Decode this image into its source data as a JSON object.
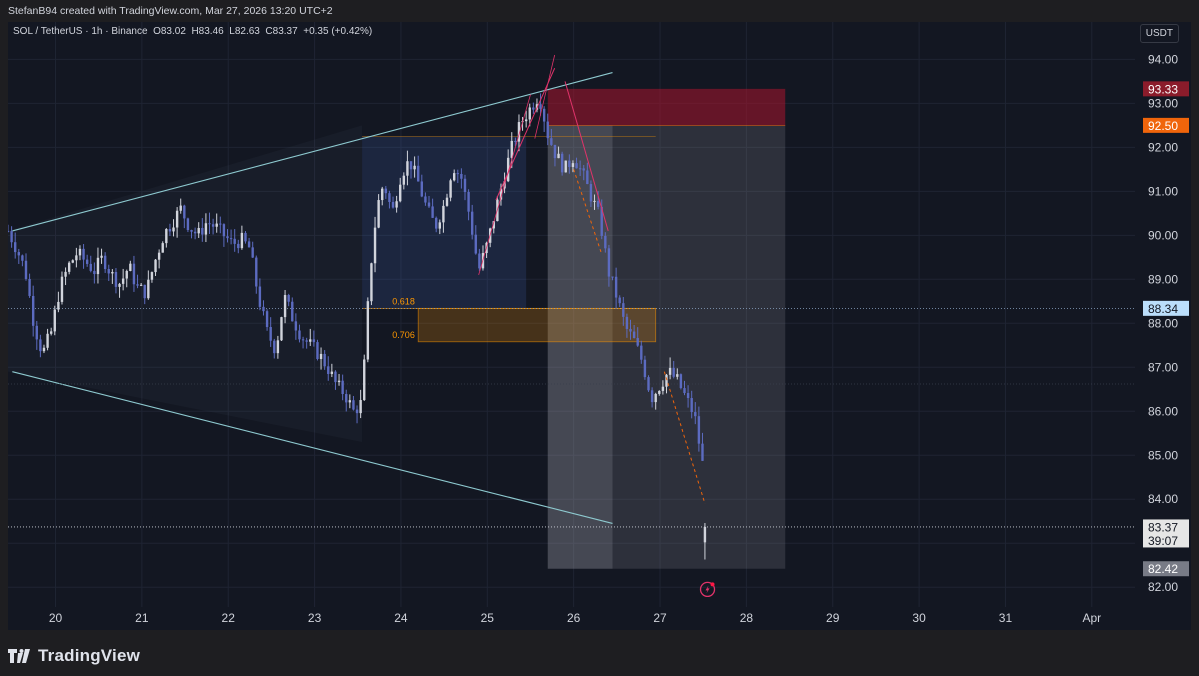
{
  "header": {
    "credit": "StefanB94 created with TradingView.com, Mar 27, 2026 13:20 UTC+2"
  },
  "legend": {
    "symbol": "SOL / TetherUS · 1h · Binance",
    "open": "O83.02",
    "high": "H83.46",
    "low": "L82.63",
    "close": "C83.37",
    "change": "+0.35 (+0.42%)"
  },
  "currency": "USDT",
  "footer": {
    "brand": "TradingView"
  },
  "colors": {
    "background": "#131722",
    "up_candle": "#d1d4dc",
    "down_candle": "#5c6bc0",
    "trendline": "#8ecad0",
    "stop_zone": "#8a1f2e",
    "fib_zone": "#ff9800",
    "red_marker": "#ff1744"
  },
  "chart_data": {
    "type": "candlestick",
    "symbol": "SOL / TetherUS",
    "interval": "1h",
    "exchange": "Binance",
    "ylim": [
      81.55,
      94.85
    ],
    "y_ticks": [
      "82.00",
      "83.00",
      "84.00",
      "85.00",
      "86.00",
      "87.00",
      "88.00",
      "89.00",
      "90.00",
      "91.00",
      "92.00",
      "93.00",
      "94.00"
    ],
    "x_ticks": [
      "20",
      "21",
      "22",
      "23",
      "24",
      "25",
      "26",
      "27",
      "28",
      "29",
      "30",
      "31",
      "Apr"
    ],
    "x_tick_days": [
      20,
      21,
      22,
      23,
      24,
      25,
      26,
      27,
      28,
      29,
      30,
      31,
      32
    ],
    "x_range_days": [
      19.45,
      32.5
    ],
    "price_labels": [
      {
        "value": 93.33,
        "text": "93.33",
        "color": "#8b1c2b"
      },
      {
        "value": 92.5,
        "text": "92.50",
        "color": "#f0650b"
      },
      {
        "value": 88.34,
        "text": "88.34",
        "color": "#bbdefb",
        "text_color": "#131722"
      },
      {
        "value": 83.37,
        "text": "83.37",
        "sub": "39:07",
        "color": "#e6e6e6",
        "text_color": "#131722"
      },
      {
        "value": 82.42,
        "text": "82.42",
        "color": "#787b86",
        "text_color": "#ffffff"
      }
    ],
    "fib_levels": [
      {
        "label": "0.618",
        "value": 88.34
      },
      {
        "label": "0.706",
        "value": 87.58
      }
    ],
    "trend_points": [
      [
        19.45,
        89.9
      ],
      [
        19.6,
        89.0
      ],
      [
        19.7,
        87.9
      ],
      [
        19.8,
        87.3
      ],
      [
        19.9,
        88.1
      ],
      [
        20.0,
        88.9
      ],
      [
        20.1,
        89.5
      ],
      [
        20.2,
        89.6
      ],
      [
        20.3,
        89.4
      ],
      [
        20.4,
        89.2
      ],
      [
        20.5,
        89.5
      ],
      [
        20.6,
        89.0
      ],
      [
        20.7,
        88.9
      ],
      [
        20.8,
        89.2
      ],
      [
        20.9,
        88.8
      ],
      [
        21.0,
        88.6
      ],
      [
        21.1,
        89.3
      ],
      [
        21.2,
        90.2
      ],
      [
        21.3,
        90.4
      ],
      [
        21.4,
        90.6
      ],
      [
        21.5,
        90.2
      ],
      [
        21.6,
        90.1
      ],
      [
        21.7,
        90.3
      ],
      [
        21.8,
        90.2
      ],
      [
        21.9,
        90.0
      ],
      [
        22.0,
        89.8
      ],
      [
        22.1,
        89.9
      ],
      [
        22.2,
        89.8
      ],
      [
        22.3,
        89.1
      ],
      [
        22.4,
        88.0
      ],
      [
        22.5,
        87.6
      ],
      [
        22.6,
        88.5
      ],
      [
        22.7,
        88.2
      ],
      [
        22.8,
        87.8
      ],
      [
        22.9,
        87.4
      ],
      [
        23.0,
        87.5
      ],
      [
        23.1,
        87.1
      ],
      [
        23.2,
        86.9
      ],
      [
        23.3,
        86.6
      ],
      [
        23.4,
        86.3
      ],
      [
        23.5,
        86.8
      ],
      [
        23.6,
        86.6
      ],
      [
        23.7,
        86.1
      ],
      [
        23.8,
        86.3
      ],
      [
        23.9,
        86.1
      ],
      [
        24.0,
        86.5
      ],
      [
        24.1,
        86.9
      ],
      [
        24.2,
        86.4
      ],
      [
        24.3,
        86.6
      ],
      [
        24.4,
        86.0
      ],
      [
        24.5,
        85.8
      ],
      [
        24.6,
        86.1
      ],
      [
        24.7,
        85.9
      ],
      [
        24.8,
        86.2
      ],
      [
        24.9,
        86.0
      ],
      [
        23.55,
        86.2
      ],
      [
        23.65,
        88.5
      ],
      [
        23.75,
        91.0
      ],
      [
        23.85,
        90.2
      ]
    ],
    "series_sequence": [
      [
        19.45,
        90.1
      ],
      [
        19.55,
        89.7
      ],
      [
        19.65,
        89.2
      ],
      [
        19.75,
        88.0
      ],
      [
        19.85,
        87.3
      ],
      [
        19.95,
        87.8
      ],
      [
        20.05,
        88.8
      ],
      [
        20.15,
        89.3
      ],
      [
        20.25,
        89.6
      ],
      [
        20.35,
        89.4
      ],
      [
        20.45,
        89.2
      ],
      [
        20.55,
        89.5
      ],
      [
        20.65,
        89.1
      ],
      [
        20.75,
        88.9
      ],
      [
        20.85,
        89.3
      ],
      [
        20.95,
        88.8
      ],
      [
        21.05,
        88.7
      ],
      [
        21.15,
        89.4
      ],
      [
        21.25,
        90.0
      ],
      [
        21.35,
        90.3
      ],
      [
        21.45,
        90.6
      ],
      [
        21.55,
        90.2
      ],
      [
        21.65,
        90.0
      ],
      [
        21.75,
        90.3
      ],
      [
        21.85,
        90.2
      ],
      [
        21.95,
        90.0
      ],
      [
        22.05,
        89.8
      ],
      [
        22.15,
        89.9
      ],
      [
        22.25,
        89.7
      ],
      [
        22.35,
        88.6
      ],
      [
        22.45,
        87.8
      ],
      [
        22.55,
        87.4
      ],
      [
        22.65,
        88.6
      ],
      [
        22.75,
        88.1
      ],
      [
        22.85,
        87.7
      ],
      [
        22.95,
        87.5
      ],
      [
        23.05,
        87.3
      ],
      [
        23.15,
        87.0
      ],
      [
        23.25,
        86.6
      ],
      [
        23.35,
        86.4
      ],
      [
        23.45,
        86.0
      ],
      [
        23.55,
        86.2
      ],
      [
        23.6,
        87.9
      ],
      [
        23.65,
        89.3
      ],
      [
        23.72,
        90.6
      ],
      [
        23.8,
        91.2
      ],
      [
        23.9,
        90.5
      ],
      [
        24.0,
        91.4
      ],
      [
        24.1,
        91.7
      ],
      [
        24.2,
        91.2
      ],
      [
        24.3,
        90.6
      ],
      [
        24.4,
        90.2
      ],
      [
        24.5,
        90.7
      ],
      [
        24.6,
        91.6
      ],
      [
        24.7,
        91.3
      ],
      [
        24.8,
        90.4
      ],
      [
        24.9,
        89.2
      ],
      [
        25.0,
        89.8
      ],
      [
        25.1,
        90.6
      ],
      [
        25.2,
        91.4
      ],
      [
        25.3,
        92.1
      ],
      [
        25.4,
        92.6
      ],
      [
        25.5,
        92.9
      ],
      [
        25.6,
        93.2
      ],
      [
        25.7,
        92.3
      ],
      [
        25.8,
        91.8
      ],
      [
        25.9,
        91.5
      ],
      [
        26.0,
        91.8
      ],
      [
        26.1,
        91.4
      ],
      [
        26.2,
        90.9
      ],
      [
        26.3,
        90.4
      ],
      [
        26.4,
        89.2
      ],
      [
        26.5,
        88.6
      ],
      [
        26.6,
        87.9
      ],
      [
        26.7,
        87.6
      ],
      [
        26.8,
        87.1
      ],
      [
        26.9,
        86.3
      ],
      [
        27.0,
        86.6
      ],
      [
        27.1,
        86.9
      ],
      [
        27.2,
        86.7
      ],
      [
        27.3,
        86.3
      ],
      [
        27.4,
        85.9
      ],
      [
        27.5,
        84.7
      ],
      [
        27.52,
        83.37
      ]
    ],
    "close": 83.37,
    "open": 83.02,
    "high": 83.46,
    "low": 82.63
  }
}
